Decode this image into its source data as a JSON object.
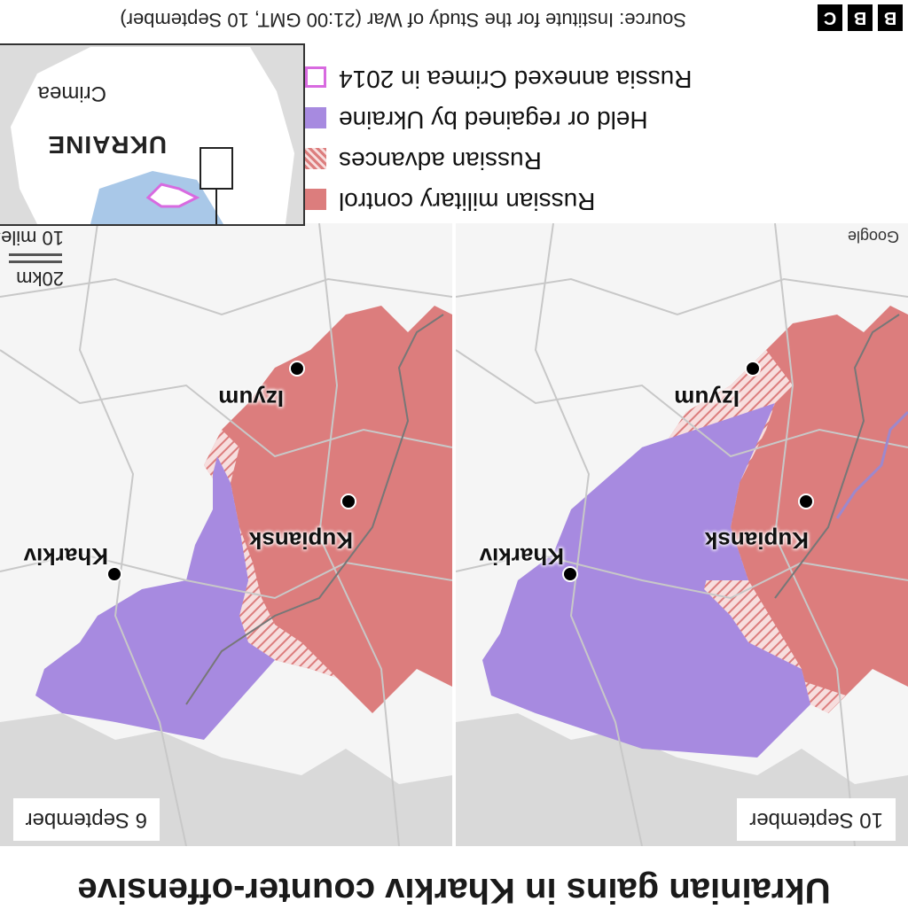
{
  "title": "Ukrainian gains in Kharkiv counter-offensive",
  "panels": [
    {
      "date": "6 September"
    },
    {
      "date": "10 September"
    }
  ],
  "places": {
    "kharkiv": "Kharkiv",
    "izyum": "Izyum",
    "kupiansk": "Kupiansk"
  },
  "scale": {
    "miles": "10 miles",
    "km": "20km"
  },
  "attribution": "Google",
  "legend": [
    {
      "label": "Russian military control",
      "color": "#dc7d7d",
      "style": "solid"
    },
    {
      "label": "Russian advances",
      "color": "#dc7d7d",
      "style": "hatched"
    },
    {
      "label": "Held or regained by Ukraine",
      "color": "#a78ae0",
      "style": "solid"
    },
    {
      "label": "Russia annexed Crimea in 2014",
      "color": "#d86ae0",
      "style": "outline"
    }
  ],
  "inset": {
    "country": "UKRAINE",
    "crimea": "Crimea"
  },
  "source": "Source: Institute for the Study of War (21:00 GMT, 10 September)",
  "brand": {
    "letters": [
      "B",
      "B",
      "C"
    ]
  },
  "colors": {
    "russia": "#dc7d7d",
    "ukraine": "#a78ae0",
    "crimea": "#d86ae0",
    "sea": "#a9c8e8",
    "land": "#f5f5f5",
    "grey": "#d9d9d9"
  }
}
